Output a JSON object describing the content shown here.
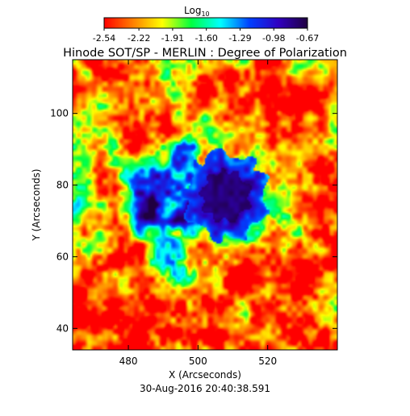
{
  "chart_data": {
    "type": "heatmap",
    "title": "Hinode SOT/SP - MERLIN : Degree of Polarization",
    "xlabel": "X (Arcseconds)",
    "ylabel": "Y (Arcseconds)",
    "timestamp": "30-Aug-2016 20:40:38.591",
    "xlim": [
      464,
      540
    ],
    "ylim": [
      34,
      115
    ],
    "x_ticks": [
      480,
      500,
      520
    ],
    "y_ticks": [
      40,
      60,
      80,
      100
    ],
    "colorbar": {
      "title": "Log",
      "title_sub": "10",
      "range": [
        -2.54,
        -0.67
      ],
      "ticks": [
        "-2.54",
        "-2.22",
        "-1.91",
        "-1.60",
        "-1.29",
        "-0.98",
        "-0.67"
      ],
      "colors": [
        "#ff0000",
        "#ff8000",
        "#ffff00",
        "#00ff40",
        "#00ffff",
        "#0040ff",
        "#3000c0",
        "#200040"
      ]
    },
    "features": {
      "spot_center": [
        508,
        77
      ],
      "umbra_radius": 7,
      "penumbra_radius": 12,
      "umbra_value": -0.78,
      "penumbra_value": -1.15,
      "quiet_value": -2.4,
      "network_value": -1.75
    }
  }
}
